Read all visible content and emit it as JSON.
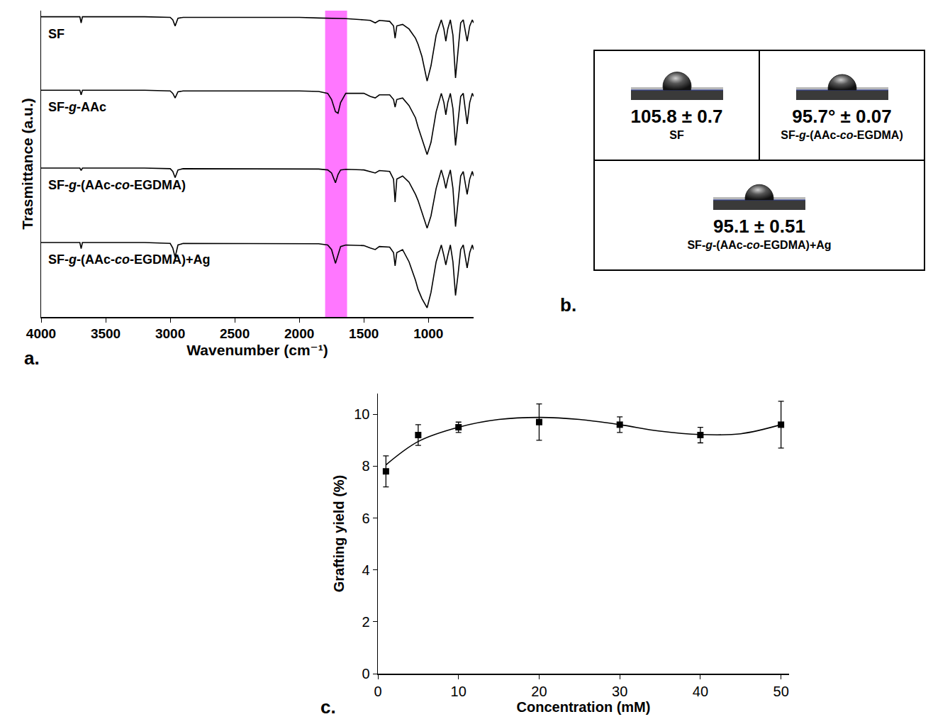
{
  "chart_data": [
    {
      "type": "line",
      "panel_label": "a.",
      "x_label": "Wavenumber (cm⁻¹)",
      "y_label": "Trasmittance (a.u.)",
      "x": [
        4000,
        3750,
        3700,
        3690,
        3680,
        3600,
        3200,
        3000,
        2980,
        2962,
        2940,
        2900,
        2500,
        2000,
        1850,
        1780,
        1750,
        1720,
        1700,
        1680,
        1640,
        1500,
        1450,
        1412,
        1380,
        1300,
        1270,
        1258,
        1245,
        1200,
        1150,
        1100,
        1080,
        1050,
        1010,
        980,
        940,
        900,
        880,
        865,
        850,
        830,
        810,
        790,
        770,
        750,
        730,
        700,
        680,
        660,
        650
      ],
      "series": [
        {
          "name": "SF",
          "color": "#000000",
          "values": [
            98,
            98,
            98,
            96,
            98,
            98,
            98,
            97.8,
            97,
            95,
            97.5,
            97.8,
            97.8,
            97.8,
            97.6,
            97.5,
            97.5,
            97.5,
            97.5,
            97.5,
            97.4,
            97,
            96.8,
            96,
            96.8,
            96.5,
            95,
            91,
            95,
            95.5,
            94,
            91,
            89,
            85,
            77,
            82,
            92,
            97,
            94,
            90,
            94,
            97,
            92,
            78,
            88,
            96,
            97,
            90,
            95,
            97,
            96
          ]
        },
        {
          "name": "SF-g-AAc",
          "color": "#000000",
          "values": [
            74,
            74,
            74,
            72.5,
            74,
            74,
            74,
            73.8,
            73,
            71.5,
            73.5,
            73.8,
            73.8,
            73.8,
            73.6,
            73,
            71,
            67,
            66.5,
            70,
            73,
            73,
            72,
            71.5,
            72.5,
            72.5,
            71,
            68.5,
            71,
            71.5,
            69,
            65,
            62,
            58,
            53,
            57,
            67,
            73,
            70,
            66,
            70,
            73,
            68,
            56,
            64,
            72,
            73,
            63,
            70,
            73,
            72
          ]
        },
        {
          "name": "SF-g-(AAc-co-EGDMA)",
          "color": "#000000",
          "values": [
            48.6,
            48.6,
            48.6,
            47.8,
            48.6,
            48.6,
            48.6,
            48.4,
            47.5,
            45.5,
            48,
            48.4,
            48.4,
            48.4,
            48.3,
            48,
            47,
            43.8,
            46.5,
            48,
            48.2,
            48,
            47.5,
            47,
            47.8,
            47.5,
            45,
            37.5,
            45,
            46,
            44,
            40,
            38,
            34,
            29,
            33,
            42,
            48,
            45,
            42,
            45,
            48,
            42,
            29.5,
            38,
            46,
            47.5,
            40,
            45,
            47.5,
            46
          ]
        },
        {
          "name": "SF-g-(AAc-co-EGDMA)+Ag",
          "color": "#000000",
          "values": [
            24.3,
            24.3,
            24.3,
            22.3,
            24.3,
            24.3,
            24.3,
            24,
            22.5,
            19.5,
            23.5,
            24,
            24,
            24,
            23.9,
            23.5,
            22,
            17.5,
            20.5,
            23,
            23.5,
            23.3,
            22.5,
            22,
            23,
            22.8,
            21,
            16.7,
            21,
            22,
            18,
            12,
            9,
            6,
            3,
            8,
            18,
            23.5,
            20,
            17,
            20,
            23.5,
            18,
            7,
            14,
            22,
            23.5,
            16,
            21,
            23.5,
            22
          ]
        }
      ],
      "highlight_band": [
        1800,
        1630
      ],
      "xlim": [
        4000,
        650
      ],
      "xticks": [
        4000,
        3500,
        3000,
        2500,
        2000,
        1500,
        1000
      ],
      "ylim": [
        0,
        100
      ],
      "tick_labels": "x",
      "grid": false
    },
    {
      "type": "scatter",
      "panel_label": "c.",
      "x_label": "Concentration (mM)",
      "y_label": "Grafting yield (%)",
      "x": [
        1,
        5,
        10,
        20,
        30,
        40,
        50
      ],
      "values": [
        7.8,
        9.2,
        9.5,
        9.7,
        9.6,
        9.2,
        9.6
      ],
      "errors": [
        0.6,
        0.4,
        0.2,
        0.7,
        0.3,
        0.3,
        0.9
      ],
      "fit": {
        "x": [
          1,
          5,
          10,
          15,
          20,
          25,
          30,
          35,
          40,
          45,
          50
        ],
        "values": [
          8.05,
          8.95,
          9.5,
          9.8,
          9.88,
          9.8,
          9.6,
          9.35,
          9.22,
          9.25,
          9.6
        ]
      },
      "color": "#000000",
      "marker": "square",
      "xlim": [
        0,
        51
      ],
      "xticks": [
        0,
        10,
        20,
        30,
        40,
        50
      ],
      "ylim": [
        0,
        10.8
      ],
      "yticks": [
        0,
        2,
        4,
        6,
        8,
        10
      ],
      "grid": false
    }
  ],
  "contact_angle_panel": {
    "panel_label": "b.",
    "measurements": [
      {
        "angle": 105.8,
        "angle_label": "105.8 ± 0.7",
        "sample": "SF"
      },
      {
        "angle": 95.7,
        "angle_label": "95.7° ± 0.07",
        "sample": "SF-g-(AAc-co-EGDMA)"
      },
      {
        "angle": 95.1,
        "angle_label": "95.1 ± 0.51",
        "sample": "SF-g-(AAc-co-EGDMA)+Ag"
      }
    ]
  }
}
